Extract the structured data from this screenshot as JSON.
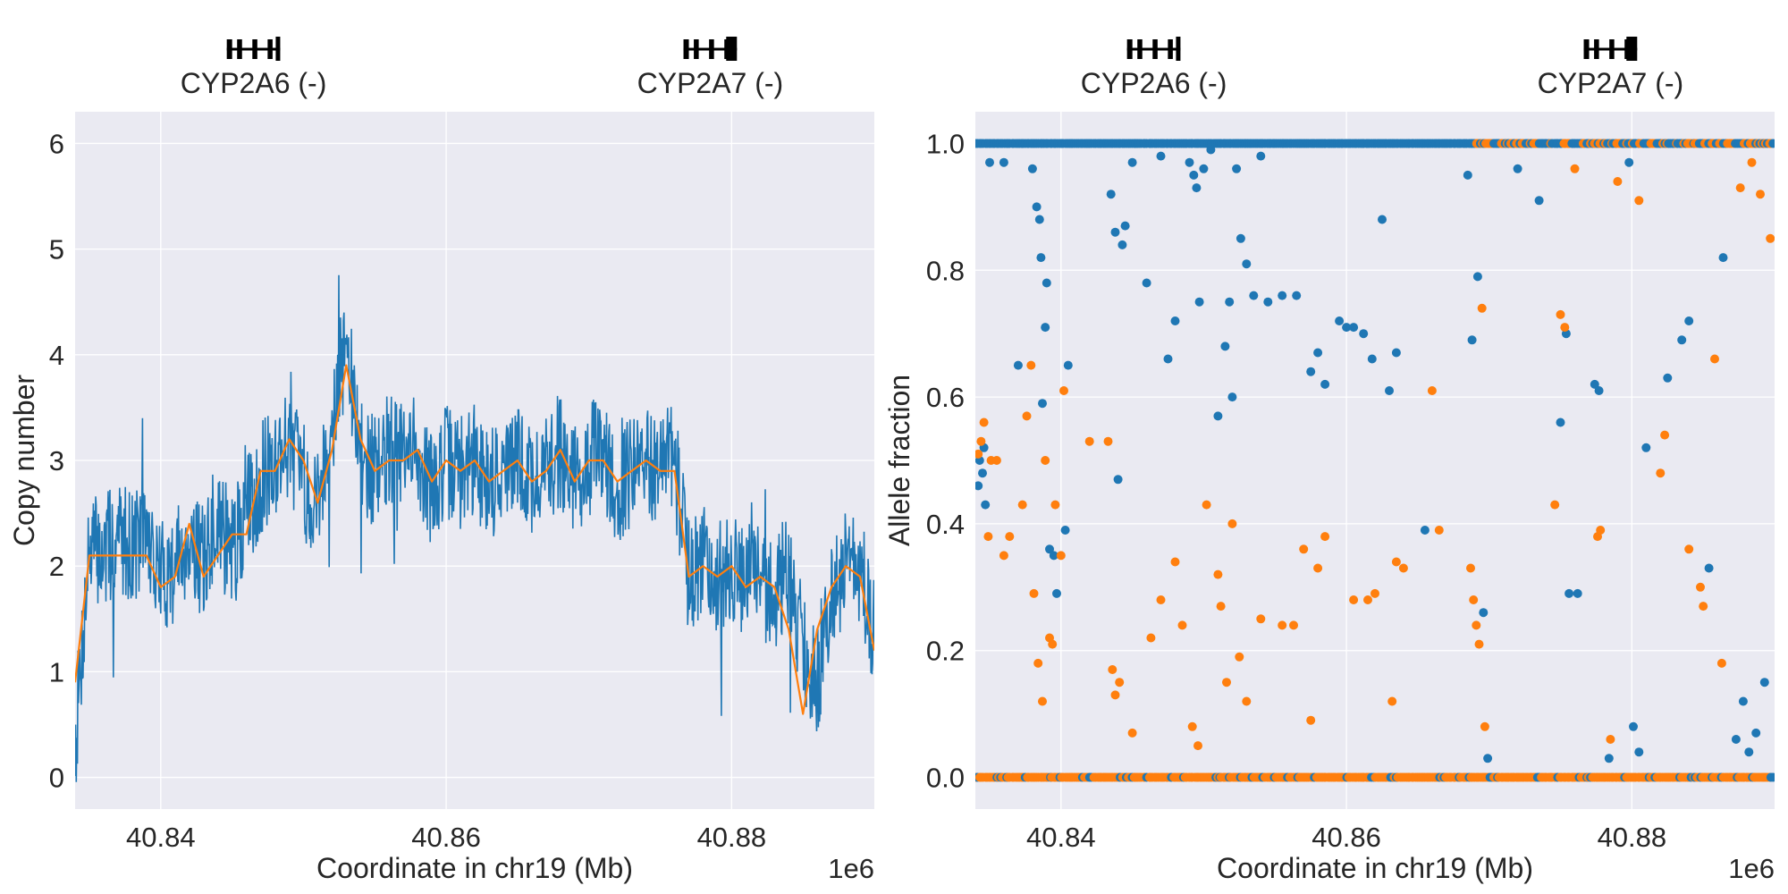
{
  "chart_data": [
    {
      "type": "line",
      "panel": "left",
      "xlabel": "Coordinate in chr19 (Mb)",
      "ylabel": "Copy number",
      "x_offset_label": "1e6",
      "xlim": [
        40834000,
        40890000
      ],
      "ylim": [
        -0.3,
        6.3
      ],
      "xticks": [
        40840000,
        40860000,
        40880000
      ],
      "xtick_labels": [
        "40.84",
        "40.86",
        "40.88"
      ],
      "yticks": [
        0,
        1,
        2,
        3,
        4,
        5,
        6
      ],
      "ytick_labels": [
        "0",
        "1",
        "2",
        "3",
        "4",
        "5",
        "6"
      ],
      "grid": true,
      "genes": [
        {
          "label": "CYP2A6 (-)",
          "start": 40843000,
          "end": 40850000
        },
        {
          "label": "CYP2A7 (-)",
          "start": 40875000,
          "end": 40882000
        }
      ],
      "series": [
        {
          "color": "#1f77b4",
          "x": [
            40834000,
            40835000,
            40836000,
            40837000,
            40838000,
            40839000,
            40840000,
            40841000,
            40842000,
            40843000,
            40844000,
            40845000,
            40846000,
            40847000,
            40848000,
            40849000,
            40850000,
            40851000,
            40852000,
            40853000,
            40854000,
            40855000,
            40856000,
            40857000,
            40858000,
            40859000,
            40860000,
            40861000,
            40862000,
            40863000,
            40864000,
            40865000,
            40866000,
            40867000,
            40868000,
            40869000,
            40870000,
            40871000,
            40872000,
            40873000,
            40874000,
            40875000,
            40876000,
            40877000,
            40878000,
            40879000,
            40880000,
            40881000,
            40882000,
            40883000,
            40884000,
            40885000,
            40886000,
            40887000,
            40888000,
            40889000,
            40890000
          ],
          "y": [
            0.3,
            2.2,
            2.1,
            2.3,
            2.2,
            2.3,
            1.9,
            2.0,
            2.3,
            2.0,
            2.5,
            2.1,
            2.5,
            2.8,
            3.0,
            3.2,
            2.8,
            2.6,
            3.4,
            4.1,
            3.0,
            2.9,
            3.1,
            3.0,
            3.1,
            2.7,
            3.0,
            2.9,
            3.0,
            2.8,
            2.9,
            3.0,
            2.8,
            2.9,
            3.1,
            2.8,
            3.0,
            3.1,
            2.7,
            2.9,
            3.0,
            2.9,
            3.0,
            1.9,
            2.1,
            1.9,
            2.0,
            1.8,
            1.9,
            1.7,
            2.0,
            1.2,
            0.9,
            1.8,
            2.0,
            2.0,
            1.2
          ]
        },
        {
          "color": "#ff7f0e",
          "x": [
            40834000,
            40835000,
            40836000,
            40837000,
            40838000,
            40839000,
            40840000,
            40841000,
            40842000,
            40843000,
            40844000,
            40845000,
            40846000,
            40847000,
            40848000,
            40849000,
            40850000,
            40851000,
            40852000,
            40853000,
            40854000,
            40855000,
            40856000,
            40857000,
            40858000,
            40859000,
            40860000,
            40861000,
            40862000,
            40863000,
            40864000,
            40865000,
            40866000,
            40867000,
            40868000,
            40869000,
            40870000,
            40871000,
            40872000,
            40873000,
            40874000,
            40875000,
            40876000,
            40877000,
            40878000,
            40879000,
            40880000,
            40881000,
            40882000,
            40883000,
            40884000,
            40885000,
            40886000,
            40887000,
            40888000,
            40889000,
            40890000
          ],
          "y": [
            0.9,
            2.1,
            2.1,
            2.1,
            2.1,
            2.1,
            1.8,
            1.9,
            2.4,
            1.9,
            2.1,
            2.3,
            2.3,
            2.9,
            2.9,
            3.2,
            3.0,
            2.6,
            3.1,
            3.9,
            3.2,
            2.9,
            3.0,
            3.0,
            3.1,
            2.8,
            3.0,
            2.9,
            3.0,
            2.8,
            2.9,
            3.0,
            2.8,
            2.9,
            3.1,
            2.8,
            3.0,
            3.0,
            2.8,
            2.9,
            3.0,
            2.9,
            2.9,
            1.9,
            2.0,
            1.9,
            2.0,
            1.8,
            1.9,
            1.8,
            1.4,
            0.6,
            1.4,
            1.8,
            2.0,
            1.9,
            1.2
          ]
        }
      ]
    },
    {
      "type": "scatter",
      "panel": "right",
      "xlabel": "Coordinate in chr19 (Mb)",
      "ylabel": "Allele fraction",
      "x_offset_label": "1e6",
      "xlim": [
        40834000,
        40890000
      ],
      "ylim": [
        -0.05,
        1.05
      ],
      "xticks": [
        40840000,
        40860000,
        40880000
      ],
      "xtick_labels": [
        "40.84",
        "40.86",
        "40.88"
      ],
      "yticks": [
        0.0,
        0.2,
        0.4,
        0.6,
        0.8,
        1.0
      ],
      "ytick_labels": [
        "0.0",
        "0.2",
        "0.4",
        "0.6",
        "0.8",
        "1.0"
      ],
      "grid": true,
      "genes": [
        {
          "label": "CYP2A6 (-)",
          "start": 40843000,
          "end": 40850000
        },
        {
          "label": "CYP2A7 (-)",
          "start": 40875000,
          "end": 40882000
        }
      ],
      "series": [
        {
          "color": "#1f77b4",
          "points": [
            [
              40834200,
              0.46
            ],
            [
              40834300,
              0.5
            ],
            [
              40834500,
              0.48
            ],
            [
              40834600,
              0.52
            ],
            [
              40834700,
              0.43
            ],
            [
              40835000,
              0.97
            ],
            [
              40836000,
              0.97
            ],
            [
              40837000,
              0.65
            ],
            [
              40838000,
              0.96
            ],
            [
              40838300,
              0.9
            ],
            [
              40838500,
              0.88
            ],
            [
              40838600,
              0.82
            ],
            [
              40838700,
              0.59
            ],
            [
              40838900,
              0.71
            ],
            [
              40839000,
              0.78
            ],
            [
              40839200,
              0.36
            ],
            [
              40839500,
              0.35
            ],
            [
              40839700,
              0.29
            ],
            [
              40840300,
              0.39
            ],
            [
              40840500,
              0.65
            ],
            [
              40843500,
              0.92
            ],
            [
              40843800,
              0.86
            ],
            [
              40844000,
              0.47
            ],
            [
              40844300,
              0.84
            ],
            [
              40844500,
              0.87
            ],
            [
              40845000,
              0.97
            ],
            [
              40846000,
              0.78
            ],
            [
              40847000,
              0.98
            ],
            [
              40847500,
              0.66
            ],
            [
              40848000,
              0.72
            ],
            [
              40849000,
              0.97
            ],
            [
              40849300,
              0.95
            ],
            [
              40849500,
              0.93
            ],
            [
              40849700,
              0.75
            ],
            [
              40850000,
              0.96
            ],
            [
              40850500,
              0.99
            ],
            [
              40851000,
              0.57
            ],
            [
              40851500,
              0.68
            ],
            [
              40851800,
              0.75
            ],
            [
              40852000,
              0.6
            ],
            [
              40852300,
              0.96
            ],
            [
              40852600,
              0.85
            ],
            [
              40853000,
              0.81
            ],
            [
              40853500,
              0.76
            ],
            [
              40854000,
              0.98
            ],
            [
              40854500,
              0.75
            ],
            [
              40855500,
              0.76
            ],
            [
              40856500,
              0.76
            ],
            [
              40857500,
              0.64
            ],
            [
              40858000,
              0.67
            ],
            [
              40858500,
              0.62
            ],
            [
              40859500,
              0.72
            ],
            [
              40860000,
              0.71
            ],
            [
              40860500,
              0.71
            ],
            [
              40861200,
              0.7
            ],
            [
              40861800,
              0.66
            ],
            [
              40862500,
              0.88
            ],
            [
              40863000,
              0.61
            ],
            [
              40863500,
              0.67
            ],
            [
              40865500,
              0.39
            ],
            [
              40868500,
              0.95
            ],
            [
              40868800,
              0.69
            ],
            [
              40869200,
              0.79
            ],
            [
              40869600,
              0.26
            ],
            [
              40869900,
              0.03
            ],
            [
              40872000,
              0.96
            ],
            [
              40873500,
              0.91
            ],
            [
              40875000,
              0.56
            ],
            [
              40875400,
              0.7
            ],
            [
              40875600,
              0.29
            ],
            [
              40876200,
              0.29
            ],
            [
              40877400,
              0.62
            ],
            [
              40877700,
              0.61
            ],
            [
              40878400,
              0.03
            ],
            [
              40879800,
              0.97
            ],
            [
              40880100,
              0.08
            ],
            [
              40880500,
              0.04
            ],
            [
              40881000,
              0.52
            ],
            [
              40882500,
              0.63
            ],
            [
              40883500,
              0.69
            ],
            [
              40884000,
              0.72
            ],
            [
              40885400,
              0.33
            ],
            [
              40886400,
              0.82
            ],
            [
              40887300,
              0.06
            ],
            [
              40887800,
              0.12
            ],
            [
              40888200,
              0.04
            ],
            [
              40888700,
              0.07
            ],
            [
              40889300,
              0.15
            ]
          ]
        },
        {
          "color": "#ff7f0e",
          "points": [
            [
              40834200,
              0.51
            ],
            [
              40834400,
              0.53
            ],
            [
              40834600,
              0.56
            ],
            [
              40834900,
              0.38
            ],
            [
              40835100,
              0.5
            ],
            [
              40835500,
              0.5
            ],
            [
              40836000,
              0.35
            ],
            [
              40836400,
              0.38
            ],
            [
              40837300,
              0.43
            ],
            [
              40837600,
              0.57
            ],
            [
              40837900,
              0.65
            ],
            [
              40838100,
              0.29
            ],
            [
              40838400,
              0.18
            ],
            [
              40838700,
              0.12
            ],
            [
              40838900,
              0.5
            ],
            [
              40839200,
              0.22
            ],
            [
              40839400,
              0.21
            ],
            [
              40839600,
              0.43
            ],
            [
              40840000,
              0.35
            ],
            [
              40840200,
              0.61
            ],
            [
              40842000,
              0.53
            ],
            [
              40843300,
              0.53
            ],
            [
              40843600,
              0.17
            ],
            [
              40843800,
              0.13
            ],
            [
              40844100,
              0.15
            ],
            [
              40845000,
              0.07
            ],
            [
              40846300,
              0.22
            ],
            [
              40847000,
              0.28
            ],
            [
              40848000,
              0.34
            ],
            [
              40848500,
              0.24
            ],
            [
              40849200,
              0.08
            ],
            [
              40849600,
              0.05
            ],
            [
              40850200,
              0.43
            ],
            [
              40851000,
              0.32
            ],
            [
              40851200,
              0.27
            ],
            [
              40851600,
              0.15
            ],
            [
              40852000,
              0.4
            ],
            [
              40852500,
              0.19
            ],
            [
              40853000,
              0.12
            ],
            [
              40854000,
              0.25
            ],
            [
              40855500,
              0.24
            ],
            [
              40856300,
              0.24
            ],
            [
              40857000,
              0.36
            ],
            [
              40857500,
              0.09
            ],
            [
              40858000,
              0.33
            ],
            [
              40858500,
              0.38
            ],
            [
              40860500,
              0.28
            ],
            [
              40861500,
              0.28
            ],
            [
              40862000,
              0.29
            ],
            [
              40863200,
              0.12
            ],
            [
              40863500,
              0.34
            ],
            [
              40864000,
              0.33
            ],
            [
              40866000,
              0.61
            ],
            [
              40866500,
              0.39
            ],
            [
              40868700,
              0.33
            ],
            [
              40868900,
              0.28
            ],
            [
              40869100,
              0.24
            ],
            [
              40869300,
              0.21
            ],
            [
              40869500,
              0.74
            ],
            [
              40869700,
              0.08
            ],
            [
              40874600,
              0.43
            ],
            [
              40875000,
              0.73
            ],
            [
              40875300,
              0.71
            ],
            [
              40876000,
              0.96
            ],
            [
              40877600,
              0.38
            ],
            [
              40877800,
              0.39
            ],
            [
              40878500,
              0.06
            ],
            [
              40879000,
              0.94
            ],
            [
              40880500,
              0.91
            ],
            [
              40882000,
              0.48
            ],
            [
              40882300,
              0.54
            ],
            [
              40884000,
              0.36
            ],
            [
              40884800,
              0.3
            ],
            [
              40885000,
              0.27
            ],
            [
              40885800,
              0.66
            ],
            [
              40886300,
              0.18
            ],
            [
              40887600,
              0.93
            ],
            [
              40888400,
              0.97
            ],
            [
              40889000,
              0.92
            ],
            [
              40889700,
              0.85
            ]
          ]
        }
      ]
    }
  ]
}
